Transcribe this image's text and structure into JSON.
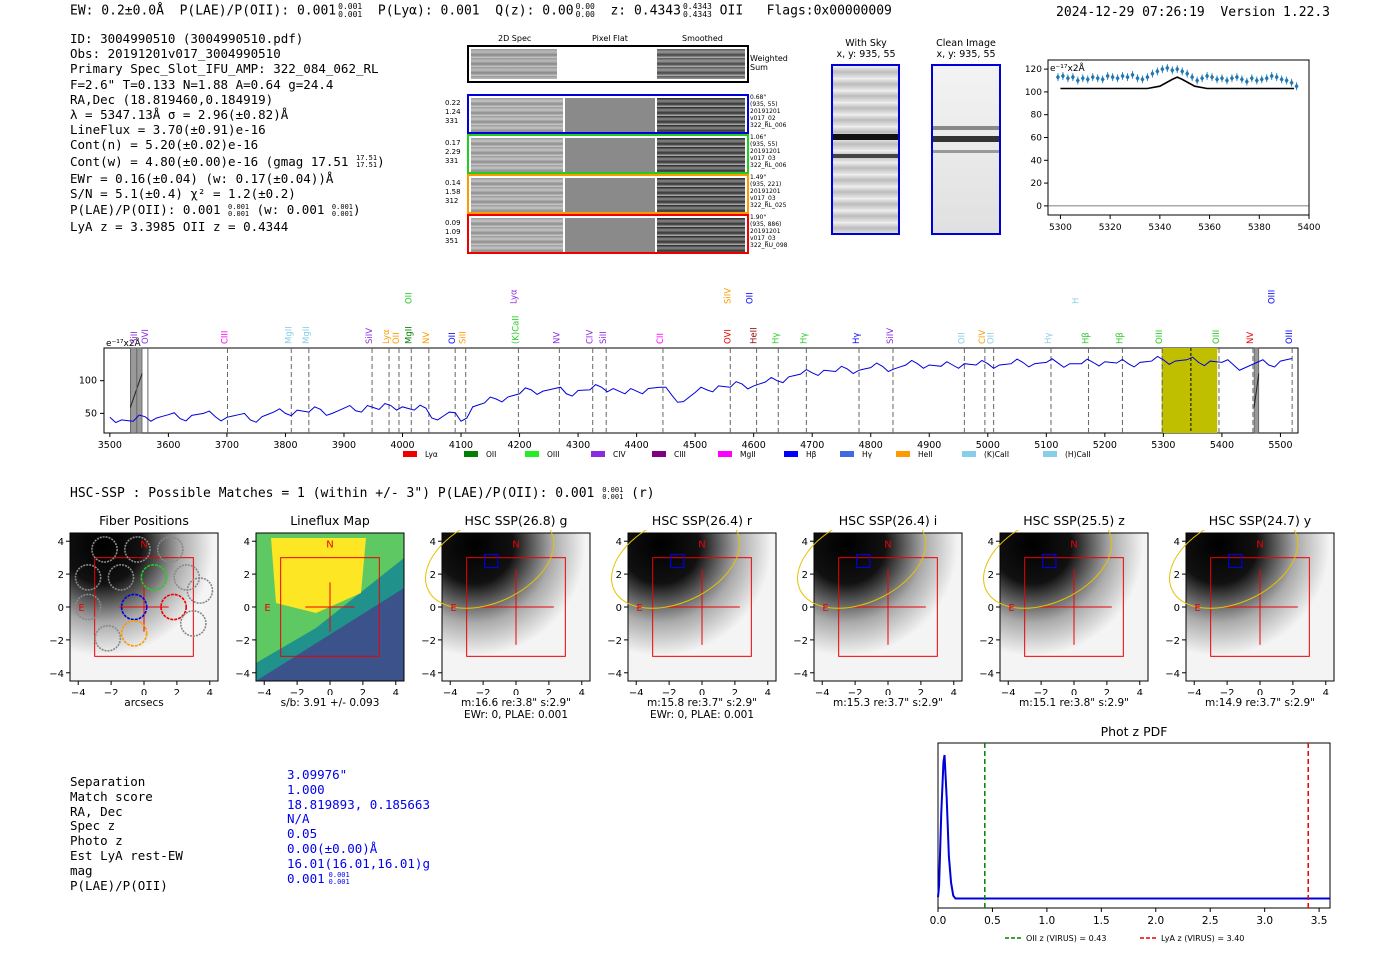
{
  "header": {
    "ew": "EW: 0.2±0.0Å",
    "plae": "P(LAE)/P(OII): 0.001",
    "plya": "P(Lyα): 0.001",
    "qz": "Q(z): 0.00",
    "z": "z: 0.4343",
    "z_line": "OII",
    "flags": "Flags:0x00000009",
    "datetime": "2024-12-29 07:26:19",
    "version": "Version 1.22.3",
    "sup_plae": "0.001",
    "sub_plae": "0.001",
    "sup_qz": "0.00",
    "sub_qz": "0.00",
    "sup_z": "0.4343",
    "sub_z": "0.4343"
  },
  "info": {
    "id": "ID: 3004990510 (3004990510.pdf)",
    "obs": "Obs: 20191201v017_3004990510",
    "primary": "Primary Spec_Slot_IFU_AMP: 322_084_062_RL",
    "params": "F=2.6\"  T=0.133  N=1.88  A=0.64  g=24.4",
    "radec": "RA,Dec (18.819460,0.184919)",
    "lambda": "λ = 5347.13Å  σ = 2.96(±0.82)Å",
    "lineflux": "LineFlux = 3.70(±0.91)e-16",
    "contn": "Cont(n) = 5.20(±0.02)e-16",
    "contw": "Cont(w) = 4.80(±0.00)e-16 (gmag 17.51",
    "contw_sup": "17.51",
    "contw_sub": "17.51",
    "contw_end": ")",
    "ewr": "EWr = 0.16(±0.04) (w: 0.17(±0.04))Å",
    "sn": "S/N = 5.1(±0.4)  χ² = 1.2(±0.2)",
    "plae": "P(LAE)/P(OII): 0.001",
    "plae_sup": "0.001",
    "plae_sub": "0.001",
    "plae_w": "(w: 0.001",
    "plae_w_sup": "0.001",
    "plae_w_sub": "0.001",
    "plae_w_end": ")",
    "lyaz": "LyA z = 3.3985  OII z = 0.4344"
  },
  "cutouts": {
    "col_2d": "2D Spec",
    "col_flat": "Pixel Flat",
    "col_smooth": "Smoothed",
    "weighted": "Weighted Sum",
    "rows": [
      {
        "left": [
          "0.22",
          "1.24",
          "331"
        ],
        "right": [
          "0.68\"",
          "(935, 55)",
          "20191201",
          "v017_02",
          "322_RL_006"
        ],
        "color": "#0000dd"
      },
      {
        "left": [
          "0.17",
          "2.29",
          "331"
        ],
        "right": [
          "1.06\"",
          "(935, 55)",
          "20191201",
          "v017_03",
          "322_RL_006"
        ],
        "color": "#22cc22"
      },
      {
        "left": [
          "0.14",
          "1.58",
          "312"
        ],
        "right": [
          "1.49\"",
          "(935, 221)",
          "20191201",
          "v017_03",
          "322_RL_025"
        ],
        "color": "#ff9900"
      },
      {
        "left": [
          "0.09",
          "1.09",
          "351"
        ],
        "right": [
          "1.90\"",
          "(935, 886)",
          "20191201",
          "v017_03",
          "322_RU_098"
        ],
        "color": "#ee0000"
      }
    ]
  },
  "skypanels": {
    "with_sky": "With Sky",
    "with_sky_xy": "x, y: 935, 55",
    "clean": "Clean Image",
    "clean_xy": "x, y: 935, 55"
  },
  "zoom_chart": {
    "units": "e⁻¹⁷x2Å",
    "x_ticks": [
      "5300",
      "5320",
      "5340",
      "5360",
      "5380",
      "5400"
    ],
    "y_ticks": [
      "0",
      "20",
      "40",
      "60",
      "80",
      "100",
      "120"
    ]
  },
  "chart_data": [
    {
      "type": "line",
      "title": "",
      "ylabel": "e⁻¹⁷x2Å",
      "xlim": [
        5295,
        5400
      ],
      "ylim": [
        -8,
        128
      ],
      "data_points": {
        "x": [
          5299,
          5301,
          5303,
          5305,
          5307,
          5309,
          5311,
          5313,
          5315,
          5317,
          5319,
          5321,
          5323,
          5325,
          5327,
          5329,
          5331,
          5333,
          5335,
          5337,
          5339,
          5341,
          5343,
          5345,
          5347,
          5349,
          5351,
          5353,
          5355,
          5357,
          5359,
          5361,
          5363,
          5365,
          5367,
          5369,
          5371,
          5373,
          5375,
          5377,
          5379,
          5381,
          5383,
          5385,
          5387,
          5389,
          5391,
          5393,
          5395
        ],
        "y": [
          113,
          114,
          112,
          113,
          110,
          112,
          111,
          113,
          112,
          111,
          114,
          113,
          112,
          114,
          113,
          115,
          112,
          111,
          113,
          116,
          118,
          120,
          121,
          119,
          120,
          118,
          116,
          113,
          110,
          112,
          114,
          113,
          111,
          112,
          110,
          112,
          113,
          111,
          109,
          112,
          110,
          111,
          112,
          114,
          113,
          111,
          110,
          108,
          105
        ]
      },
      "model": {
        "x": [
          5300,
          5335,
          5340,
          5345,
          5347,
          5349,
          5354,
          5359,
          5394
        ],
        "y": [
          103,
          103,
          105,
          111,
          113,
          111,
          105,
          103,
          103
        ]
      },
      "x_ticks": [
        5300,
        5320,
        5340,
        5360,
        5380,
        5400
      ],
      "y_ticks": [
        0,
        20,
        40,
        60,
        80,
        100,
        120
      ]
    },
    {
      "type": "line",
      "title": "",
      "ylabel": "e⁻¹⁷x2Å",
      "xlim": [
        3490,
        5530
      ],
      "ylim": [
        20,
        150
      ],
      "x_ticks": [
        3500,
        3600,
        3700,
        3800,
        3900,
        4000,
        4100,
        4200,
        4300,
        4400,
        4500,
        4600,
        4700,
        4800,
        4900,
        5000,
        5100,
        5200,
        5300,
        5400,
        5500
      ],
      "y_ticks": [
        50,
        100
      ],
      "spectrum": {
        "x": [
          3500,
          3520,
          3540,
          3560,
          3580,
          3600,
          3620,
          3640,
          3660,
          3680,
          3700,
          3720,
          3740,
          3760,
          3780,
          3800,
          3820,
          3840,
          3860,
          3880,
          3900,
          3920,
          3940,
          3960,
          3980,
          4000,
          4020,
          4040,
          4060,
          4080,
          4100,
          4120,
          4140,
          4160,
          4180,
          4200,
          4220,
          4240,
          4260,
          4280,
          4300,
          4320,
          4340,
          4360,
          4380,
          4400,
          4420,
          4440,
          4460,
          4480,
          4500,
          4520,
          4540,
          4560,
          4580,
          4600,
          4620,
          4640,
          4660,
          4680,
          4700,
          4720,
          4740,
          4760,
          4780,
          4800,
          4820,
          4840,
          4860,
          4880,
          4900,
          4920,
          4940,
          4960,
          4980,
          5000,
          5020,
          5040,
          5060,
          5080,
          5100,
          5120,
          5140,
          5160,
          5180,
          5200,
          5220,
          5240,
          5260,
          5280,
          5300,
          5320,
          5340,
          5360,
          5380,
          5400,
          5420,
          5440,
          5460,
          5480,
          5500,
          5520
        ],
        "y": [
          44,
          40,
          38,
          45,
          43,
          48,
          42,
          47,
          50,
          45,
          44,
          48,
          40,
          45,
          52,
          50,
          55,
          52,
          56,
          50,
          58,
          54,
          62,
          56,
          62,
          60,
          55,
          58,
          40,
          52,
          38,
          60,
          66,
          72,
          75,
          80,
          86,
          84,
          88,
          80,
          85,
          86,
          90,
          88,
          80,
          84,
          88,
          90,
          78,
          68,
          82,
          86,
          92,
          90,
          95,
          92,
          98,
          100,
          106,
          110,
          112,
          116,
          114,
          118,
          116,
          120,
          122,
          118,
          124,
          126,
          124,
          122,
          124,
          126,
          124,
          126,
          124,
          126,
          128,
          126,
          128,
          127,
          126,
          126,
          128,
          129,
          127,
          126,
          128,
          130,
          132,
          130,
          132,
          128,
          130,
          128,
          124,
          120,
          128,
          124,
          130,
          134
        ]
      },
      "lines": [
        {
          "x": 3546,
          "label": "SiII",
          "color": "#8a2be2",
          "kind": "solid"
        },
        {
          "x": 3565,
          "label": "OVI",
          "color": "#8a2be2",
          "kind": "solid"
        },
        {
          "x": 3701,
          "label": "CIII",
          "color": "#ff00ff",
          "kind": "dash"
        },
        {
          "x": 3810,
          "label": "MgII",
          "color": "#87ceeb",
          "kind": "dash"
        },
        {
          "x": 3840,
          "label": "MgII",
          "color": "#87ceeb",
          "kind": "dash"
        },
        {
          "x": 3948,
          "label": "SiIV",
          "color": "#8a2be2",
          "kind": "dash"
        },
        {
          "x": 3977,
          "label": "Lyα",
          "color": "#ff9900",
          "kind": "dash"
        },
        {
          "x": 3994,
          "label": "OII",
          "color": "#ff9900",
          "kind": "dash"
        },
        {
          "x": 4015,
          "label": "MgII",
          "color": "#008000",
          "kind": "dash"
        },
        {
          "x": 4045,
          "label": "NV",
          "color": "#ff9900",
          "kind": "dash"
        },
        {
          "x": 4090,
          "label": "OII",
          "color": "#0000ff",
          "kind": "dash"
        },
        {
          "x": 4108,
          "label": "SiII",
          "color": "#ff9900",
          "kind": "dash"
        },
        {
          "x": 4198,
          "label": "(K)CaII",
          "color": "#22cc22",
          "kind": "dash"
        },
        {
          "x": 4268,
          "label": "NV",
          "color": "#8a2be2",
          "kind": "dash"
        },
        {
          "x": 4325,
          "label": "CIV",
          "color": "#8a2be2",
          "kind": "dash"
        },
        {
          "x": 4348,
          "label": "SiII",
          "color": "#8a2be2",
          "kind": "dash"
        },
        {
          "x": 4445,
          "label": "CII",
          "color": "#ff00ff",
          "kind": "dash"
        },
        {
          "x": 4560,
          "label": "OVI",
          "color": "#ee0000",
          "kind": "dash"
        },
        {
          "x": 4605,
          "label": "HeII",
          "color": "#8b0000",
          "kind": "dash"
        },
        {
          "x": 4642,
          "label": "Hγ",
          "color": "#22cc22",
          "kind": "dash"
        },
        {
          "x": 4690,
          "label": "Hγ",
          "color": "#22cc22",
          "kind": "dash"
        },
        {
          "x": 4780,
          "label": "Hγ",
          "color": "#0000ff",
          "kind": "dash"
        },
        {
          "x": 4838,
          "label": "SiIV",
          "color": "#8a2be2",
          "kind": "dash"
        },
        {
          "x": 4960,
          "label": "OII",
          "color": "#87ceeb",
          "kind": "dash"
        },
        {
          "x": 4995,
          "label": "CIV",
          "color": "#ff9900",
          "kind": "dash"
        },
        {
          "x": 5010,
          "label": "OII",
          "color": "#87ceeb",
          "kind": "dash"
        },
        {
          "x": 5108,
          "label": "Hγ",
          "color": "#87ceeb",
          "kind": "dash"
        },
        {
          "x": 5172,
          "label": "Hβ",
          "color": "#22cc22",
          "kind": "dash"
        },
        {
          "x": 5230,
          "label": "Hβ",
          "color": "#22cc22",
          "kind": "dash"
        },
        {
          "x": 5298,
          "label": "OIII",
          "color": "#22cc22",
          "kind": "dash"
        },
        {
          "x": 5395,
          "label": "OIII",
          "color": "#22cc22",
          "kind": "dash"
        },
        {
          "x": 5453,
          "label": "NV",
          "color": "#ee0000",
          "kind": "dash"
        },
        {
          "x": 5520,
          "label": "OIII",
          "color": "#0000ff",
          "kind": "dash"
        }
      ],
      "upper_labels": [
        {
          "x": 4015,
          "label": "OII",
          "color": "#22cc22"
        },
        {
          "x": 4195,
          "label": "Lyα",
          "color": "#8a2be2"
        },
        {
          "x": 4560,
          "label": "SiIV",
          "color": "#ff9900"
        },
        {
          "x": 4598,
          "label": "OII",
          "color": "#0000ff"
        },
        {
          "x": 5155,
          "label": "H",
          "color": "#87ceeb"
        },
        {
          "x": 5490,
          "label": "OIII",
          "color": "#0000ff"
        }
      ],
      "legend": [
        {
          "label": "Lyα",
          "color": "#ee0000"
        },
        {
          "label": "OII",
          "color": "#008000"
        },
        {
          "label": "OIII",
          "color": "#22ee22"
        },
        {
          "label": "CIV",
          "color": "#8a2be2"
        },
        {
          "label": "CIII",
          "color": "#800080"
        },
        {
          "label": "MgII",
          "color": "#ff00ff"
        },
        {
          "label": "Hβ",
          "color": "#0000ff"
        },
        {
          "label": "Hγ",
          "color": "#4169e1"
        },
        {
          "label": "HeII",
          "color": "#ff9900"
        },
        {
          "label": "(K)CaII",
          "color": "#87ceeb"
        },
        {
          "label": "(H)CaII",
          "color": "#87ceeb"
        }
      ]
    },
    {
      "type": "line",
      "title": "Phot z PDF",
      "xlim": [
        0,
        3.6
      ],
      "x_ticks": [
        0.0,
        0.5,
        1.0,
        1.5,
        2.0,
        2.5,
        3.0,
        3.5
      ],
      "x_tick_labels": [
        "0.0",
        "0.5",
        "1.0",
        "1.5",
        "2.0",
        "2.5",
        "3.0",
        "3.5"
      ],
      "pdf": {
        "x": [
          0,
          0.01,
          0.03,
          0.05,
          0.06,
          0.08,
          0.1,
          0.12,
          0.14,
          0.16,
          0.5,
          1,
          2,
          3,
          3.6
        ],
        "y": [
          0.02,
          0.1,
          0.6,
          0.95,
          1.0,
          0.7,
          0.3,
          0.12,
          0.03,
          0.01,
          0.01,
          0.01,
          0.01,
          0.01,
          0.01
        ]
      },
      "legend": [
        {
          "label": "OII z (VIRUS) = 0.43",
          "color": "#008000",
          "value": 0.43
        },
        {
          "label": "LyA z (VIRUS) = 3.40",
          "color": "#ee0000",
          "value": 3.4
        }
      ]
    }
  ],
  "hsc": {
    "summary": "HSC-SSP : Possible Matches = 1 (within +/- 3\")  P(LAE)/P(OII): 0.001",
    "summary_sup": "0.001",
    "summary_sub": "0.001",
    "summary_end": "(r)",
    "panels": [
      {
        "title": "Fiber Positions",
        "cap1": "arcsecs",
        "cap2": ""
      },
      {
        "title": "Lineflux Map",
        "cap1": "s/b: 3.91 +/- 0.093",
        "cap2": ""
      },
      {
        "title": "HSC SSP(26.8) g",
        "cap1": "m:16.6  re:3.8\"  s:2.9\"",
        "cap2": "EWr: 0, PLAE: 0.001"
      },
      {
        "title": "HSC SSP(26.4) r",
        "cap1": "m:15.8  re:3.7\"  s:2.9\"",
        "cap2": "EWr: 0, PLAE: 0.001"
      },
      {
        "title": "HSC SSP(26.4) i",
        "cap1": "m:15.3  re:3.7\"  s:2.9\"",
        "cap2": ""
      },
      {
        "title": "HSC SSP(25.5) z",
        "cap1": "m:15.1  re:3.8\"  s:2.9\"",
        "cap2": ""
      },
      {
        "title": "HSC SSP(24.7) y",
        "cap1": "m:14.9  re:3.7\"  s:2.9\"",
        "cap2": ""
      }
    ],
    "axis_ticks": [
      "−4",
      "−2",
      "0",
      "2",
      "4"
    ],
    "label_n": "N",
    "label_e": "E"
  },
  "match": {
    "labels": [
      "Separation",
      "Match score",
      "RA, Dec",
      "Spec z",
      "Photo z",
      "Est LyA rest-EW",
      "mag",
      "P(LAE)/P(OII)"
    ],
    "values": [
      "3.09976\"",
      "1.000",
      "18.819893, 0.185663",
      "N/A",
      "0.05",
      "0.00(±0.00)Å",
      "16.01(16.01,16.01)g",
      "0.001"
    ],
    "plae_sup": "0.001",
    "plae_sub": "0.001"
  }
}
